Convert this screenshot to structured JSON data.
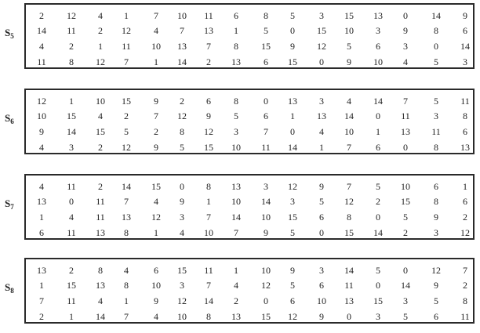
{
  "sboxes": [
    {
      "name": "S",
      "index": "5",
      "rows": [
        [
          "2",
          "12",
          "4",
          "1",
          "7",
          "10",
          "11",
          "6",
          "8",
          "5",
          "3",
          "15",
          "13",
          "0",
          "14",
          "9"
        ],
        [
          "14",
          "11",
          "2",
          "12",
          "4",
          "7",
          "13",
          "1",
          "5",
          "0",
          "15",
          "10",
          "3",
          "9",
          "8",
          "6"
        ],
        [
          "4",
          "2",
          "1",
          "11",
          "10",
          "13",
          "7",
          "8",
          "15",
          "9",
          "12",
          "5",
          "6",
          "3",
          "0",
          "14"
        ],
        [
          "11",
          "8",
          "12",
          "7",
          "1",
          "14",
          "2",
          "13",
          "6",
          "15",
          "0",
          "9",
          "10",
          "4",
          "5",
          "3"
        ]
      ]
    },
    {
      "name": "S",
      "index": "6",
      "rows": [
        [
          "12",
          "1",
          "10",
          "15",
          "9",
          "2",
          "6",
          "8",
          "0",
          "13",
          "3",
          "4",
          "14",
          "7",
          "5",
          "11"
        ],
        [
          "10",
          "15",
          "4",
          "2",
          "7",
          "12",
          "9",
          "5",
          "6",
          "1",
          "13",
          "14",
          "0",
          "11",
          "3",
          "8"
        ],
        [
          "9",
          "14",
          "15",
          "5",
          "2",
          "8",
          "12",
          "3",
          "7",
          "0",
          "4",
          "10",
          "1",
          "13",
          "11",
          "6"
        ],
        [
          "4",
          "3",
          "2",
          "12",
          "9",
          "5",
          "15",
          "10",
          "11",
          "14",
          "1",
          "7",
          "6",
          "0",
          "8",
          "13"
        ]
      ]
    },
    {
      "name": "S",
      "index": "7",
      "rows": [
        [
          "4",
          "11",
          "2",
          "14",
          "15",
          "0",
          "8",
          "13",
          "3",
          "12",
          "9",
          "7",
          "5",
          "10",
          "6",
          "1"
        ],
        [
          "13",
          "0",
          "11",
          "7",
          "4",
          "9",
          "1",
          "10",
          "14",
          "3",
          "5",
          "12",
          "2",
          "15",
          "8",
          "6"
        ],
        [
          "1",
          "4",
          "11",
          "13",
          "12",
          "3",
          "7",
          "14",
          "10",
          "15",
          "6",
          "8",
          "0",
          "5",
          "9",
          "2"
        ],
        [
          "6",
          "11",
          "13",
          "8",
          "1",
          "4",
          "10",
          "7",
          "9",
          "5",
          "0",
          "15",
          "14",
          "2",
          "3",
          "12"
        ]
      ]
    },
    {
      "name": "S",
      "index": "8",
      "rows": [
        [
          "13",
          "2",
          "8",
          "4",
          "6",
          "15",
          "11",
          "1",
          "10",
          "9",
          "3",
          "14",
          "5",
          "0",
          "12",
          "7"
        ],
        [
          "1",
          "15",
          "13",
          "8",
          "10",
          "3",
          "7",
          "4",
          "12",
          "5",
          "6",
          "11",
          "0",
          "14",
          "9",
          "2"
        ],
        [
          "7",
          "11",
          "4",
          "1",
          "9",
          "12",
          "14",
          "2",
          "0",
          "6",
          "10",
          "13",
          "15",
          "3",
          "5",
          "8"
        ],
        [
          "2",
          "1",
          "14",
          "7",
          "4",
          "10",
          "8",
          "13",
          "15",
          "12",
          "9",
          "0",
          "3",
          "5",
          "6",
          "11"
        ]
      ]
    }
  ]
}
